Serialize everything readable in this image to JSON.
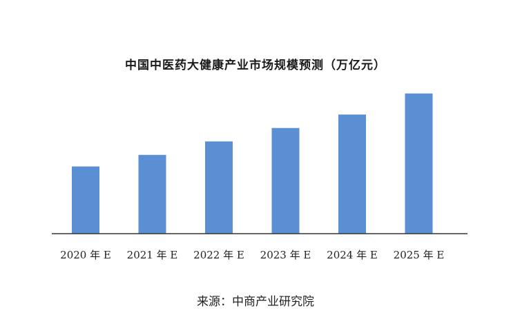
{
  "colors": {
    "bar": "#5b8fd4",
    "axis": "#333333",
    "text": "#222222"
  },
  "source": "来源：中商产业研究院",
  "chart_data": {
    "type": "bar",
    "title": "中国中医药大健康产业市场规模预测（万亿元）",
    "xlabel": "",
    "ylabel": "",
    "categories": [
      "2020 年 E",
      "2021 年 E",
      "2022 年 E",
      "2023 年 E",
      "2024 年 E",
      "2025 年 E"
    ],
    "values": [
      3.5,
      4.1,
      4.8,
      5.5,
      6.2,
      7.3
    ],
    "ylim": [
      0,
      7.5
    ],
    "grid": false,
    "legend": "none"
  }
}
